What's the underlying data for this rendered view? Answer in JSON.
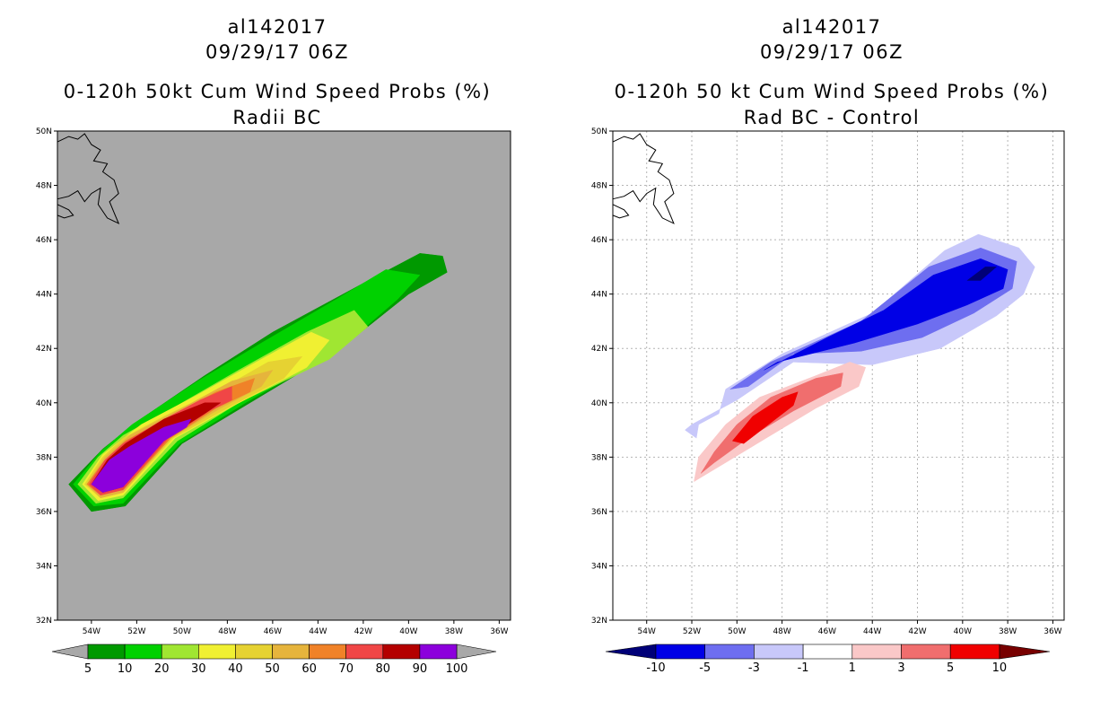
{
  "chart_data": [
    {
      "type": "heatmap",
      "storm_id": "al142017",
      "datetime": "09/29/17 06Z",
      "title": "0-120h 50kt Cum Wind Speed Probs (%)",
      "subtitle": "Radii BC",
      "x_ticks": [
        "54W",
        "52W",
        "50W",
        "48W",
        "46W",
        "44W",
        "42W",
        "40W",
        "38W",
        "36W"
      ],
      "y_ticks": [
        "32N",
        "34N",
        "36N",
        "38N",
        "40N",
        "42N",
        "44N",
        "46N",
        "48N",
        "50N"
      ],
      "xlim_lon_west": [
        55.5,
        35.5
      ],
      "ylim_lat": [
        32,
        50
      ],
      "grid": false,
      "background_color": "#a8a8a8",
      "colorbar": {
        "labels": [
          "5",
          "10",
          "20",
          "30",
          "40",
          "50",
          "60",
          "70",
          "80",
          "90",
          "100"
        ],
        "colors": [
          "#009900",
          "#00d100",
          "#a0e632",
          "#f0f032",
          "#e6d232",
          "#e6b43c",
          "#f08228",
          "#f04646",
          "#b40000",
          "#8c00dc"
        ],
        "under_color": "#a8a8a8",
        "over_color": "#a8a8a8"
      },
      "contour_levels": [
        {
          "label": "5",
          "color": "#009900",
          "polygon_lonW_lat": [
            [
              55.0,
              37.0
            ],
            [
              54.0,
              36.0
            ],
            [
              52.5,
              36.2
            ],
            [
              50.0,
              38.5
            ],
            [
              47.0,
              40.0
            ],
            [
              43.0,
              42.0
            ],
            [
              40.0,
              44.0
            ],
            [
              38.3,
              44.8
            ],
            [
              38.5,
              45.4
            ],
            [
              39.5,
              45.5
            ],
            [
              42.0,
              44.4
            ],
            [
              46.0,
              42.6
            ],
            [
              49.0,
              41.0
            ],
            [
              52.0,
              39.3
            ],
            [
              53.5,
              38.3
            ]
          ]
        },
        {
          "label": "10",
          "color": "#00d100",
          "polygon_lonW_lat": [
            [
              54.8,
              37.0
            ],
            [
              53.9,
              36.2
            ],
            [
              52.6,
              36.3
            ],
            [
              50.1,
              38.5
            ],
            [
              47.2,
              40.0
            ],
            [
              43.0,
              42.0
            ],
            [
              40.5,
              43.8
            ],
            [
              39.5,
              44.7
            ],
            [
              41.0,
              44.9
            ],
            [
              43.0,
              43.9
            ],
            [
              46.5,
              42.2
            ],
            [
              49.3,
              40.8
            ],
            [
              52.2,
              39.2
            ],
            [
              53.6,
              38.2
            ]
          ]
        },
        {
          "label": "20",
          "color": "#a0e632",
          "polygon_lonW_lat": [
            [
              54.6,
              37.0
            ],
            [
              53.8,
              36.3
            ],
            [
              52.6,
              36.5
            ],
            [
              50.2,
              38.6
            ],
            [
              47.5,
              40.0
            ],
            [
              43.5,
              41.6
            ],
            [
              41.8,
              42.8
            ],
            [
              42.4,
              43.4
            ],
            [
              44.5,
              42.6
            ],
            [
              47.5,
              41.2
            ],
            [
              50.2,
              39.9
            ],
            [
              52.6,
              38.8
            ],
            [
              53.7,
              38.0
            ]
          ]
        },
        {
          "label": "30",
          "color": "#f0f032",
          "polygon_lonW_lat": [
            [
              54.4,
              37.0
            ],
            [
              53.7,
              36.4
            ],
            [
              52.6,
              36.6
            ],
            [
              50.3,
              38.7
            ],
            [
              47.7,
              39.9
            ],
            [
              44.5,
              41.3
            ],
            [
              43.5,
              42.3
            ],
            [
              44.3,
              42.6
            ],
            [
              46.5,
              41.6
            ],
            [
              49.3,
              40.3
            ],
            [
              51.8,
              39.2
            ],
            [
              53.5,
              38.1
            ]
          ]
        },
        {
          "label": "40",
          "color": "#e6d232",
          "polygon_lonW_lat": [
            [
              54.3,
              37.0
            ],
            [
              53.6,
              36.5
            ],
            [
              52.6,
              36.7
            ],
            [
              50.4,
              38.7
            ],
            [
              48.0,
              39.8
            ],
            [
              45.5,
              40.9
            ],
            [
              44.7,
              41.7
            ],
            [
              46.2,
              41.5
            ],
            [
              48.3,
              40.5
            ],
            [
              50.8,
              39.5
            ],
            [
              52.6,
              38.7
            ],
            [
              53.5,
              38.0
            ]
          ]
        },
        {
          "label": "50",
          "color": "#e6b43c",
          "polygon_lonW_lat": [
            [
              54.2,
              37.0
            ],
            [
              53.6,
              36.5
            ],
            [
              52.6,
              36.7
            ],
            [
              50.5,
              38.7
            ],
            [
              48.3,
              39.8
            ],
            [
              46.5,
              40.6
            ],
            [
              46.0,
              41.2
            ],
            [
              47.8,
              40.8
            ],
            [
              50.0,
              39.8
            ],
            [
              52.3,
              38.8
            ],
            [
              53.4,
              38.0
            ]
          ]
        },
        {
          "label": "60",
          "color": "#f08228",
          "polygon_lonW_lat": [
            [
              54.2,
              37.0
            ],
            [
              53.6,
              36.6
            ],
            [
              52.6,
              36.8
            ],
            [
              50.5,
              38.7
            ],
            [
              48.5,
              39.8
            ],
            [
              47.0,
              40.4
            ],
            [
              46.8,
              40.9
            ],
            [
              48.5,
              40.4
            ],
            [
              50.5,
              39.5
            ],
            [
              52.5,
              38.6
            ],
            [
              53.4,
              37.9
            ]
          ]
        },
        {
          "label": "70",
          "color": "#f04646",
          "polygon_lonW_lat": [
            [
              54.1,
              37.0
            ],
            [
              53.6,
              36.6
            ],
            [
              52.6,
              36.8
            ],
            [
              50.6,
              38.7
            ],
            [
              48.8,
              39.7
            ],
            [
              47.8,
              40.1
            ],
            [
              47.8,
              40.6
            ],
            [
              49.2,
              40.1
            ],
            [
              51.0,
              39.3
            ],
            [
              52.6,
              38.5
            ],
            [
              53.4,
              37.9
            ]
          ]
        },
        {
          "label": "80",
          "color": "#b40000",
          "polygon_lonW_lat": [
            [
              54.0,
              37.0
            ],
            [
              53.5,
              36.7
            ],
            [
              52.6,
              36.9
            ],
            [
              50.7,
              38.7
            ],
            [
              49.0,
              39.6
            ],
            [
              48.3,
              40.0
            ],
            [
              49.0,
              40.0
            ],
            [
              50.8,
              39.4
            ],
            [
              52.5,
              38.5
            ],
            [
              53.3,
              37.9
            ]
          ]
        },
        {
          "label": "90",
          "color": "#8c00dc",
          "polygon_lonW_lat": [
            [
              54.0,
              37.0
            ],
            [
              53.5,
              36.7
            ],
            [
              52.6,
              36.9
            ],
            [
              50.8,
              38.6
            ],
            [
              49.8,
              39.1
            ],
            [
              49.6,
              39.4
            ],
            [
              50.8,
              39.1
            ],
            [
              52.3,
              38.4
            ],
            [
              53.2,
              37.9
            ]
          ]
        }
      ]
    },
    {
      "type": "heatmap",
      "storm_id": "al142017",
      "datetime": "09/29/17 06Z",
      "title": "0-120h 50 kt Cum Wind Speed Probs (%)",
      "subtitle": "Rad BC - Control",
      "x_ticks": [
        "54W",
        "52W",
        "50W",
        "48W",
        "46W",
        "44W",
        "42W",
        "40W",
        "38W",
        "36W"
      ],
      "y_ticks": [
        "32N",
        "34N",
        "36N",
        "38N",
        "40N",
        "42N",
        "44N",
        "46N",
        "48N",
        "50N"
      ],
      "xlim_lon_west": [
        55.5,
        35.5
      ],
      "ylim_lat": [
        32,
        50
      ],
      "grid": true,
      "background_color": "#ffffff",
      "colorbar": {
        "labels": [
          "-10",
          "-5",
          "-3",
          "-1",
          "1",
          "3",
          "5",
          "10"
        ],
        "colors": [
          "#0000e6",
          "#6e6ef0",
          "#c8c8fa",
          "#ffffff",
          "#fac8c8",
          "#f06e6e",
          "#f00000"
        ],
        "under_color": "#000078",
        "over_color": "#780000"
      },
      "contour_levels": [
        {
          "label": "-1",
          "color": "#c8c8fa",
          "polygon_lonW_lat": [
            [
              52.3,
              39.0
            ],
            [
              51.8,
              38.7
            ],
            [
              51.7,
              39.2
            ],
            [
              50.8,
              39.6
            ],
            [
              50.5,
              40.5
            ],
            [
              48.0,
              41.8
            ],
            [
              44.0,
              43.3
            ],
            [
              40.8,
              45.6
            ],
            [
              39.3,
              46.2
            ],
            [
              37.5,
              45.7
            ],
            [
              36.8,
              45.0
            ],
            [
              37.3,
              44.0
            ],
            [
              38.5,
              43.2
            ],
            [
              41.0,
              42.0
            ],
            [
              44.0,
              41.4
            ],
            [
              47.5,
              41.5
            ],
            [
              50.0,
              40.1
            ],
            [
              52.0,
              39.2
            ]
          ]
        },
        {
          "label": "-3",
          "color": "#6e6ef0",
          "polygon_lonW_lat": [
            [
              50.3,
              40.5
            ],
            [
              48.5,
              41.5
            ],
            [
              44.5,
              43.0
            ],
            [
              41.5,
              45.0
            ],
            [
              39.2,
              45.7
            ],
            [
              37.6,
              45.2
            ],
            [
              37.8,
              44.2
            ],
            [
              39.5,
              43.3
            ],
            [
              41.8,
              42.4
            ],
            [
              44.5,
              41.9
            ],
            [
              47.5,
              41.8
            ],
            [
              49.5,
              40.6
            ]
          ]
        },
        {
          "label": "-5",
          "color": "#0000e6",
          "polygon_lonW_lat": [
            [
              48.8,
              41.2
            ],
            [
              46.0,
              42.4
            ],
            [
              43.5,
              43.4
            ],
            [
              41.3,
              44.7
            ],
            [
              39.2,
              45.3
            ],
            [
              38.0,
              44.9
            ],
            [
              38.2,
              44.2
            ],
            [
              39.8,
              43.6
            ],
            [
              42.0,
              42.9
            ],
            [
              44.8,
              42.2
            ],
            [
              48.2,
              41.5
            ]
          ]
        },
        {
          "label": "-10",
          "color": "#000078",
          "polygon_lonW_lat": [
            [
              39.8,
              44.5
            ],
            [
              39.0,
              45.0
            ],
            [
              38.5,
              45.0
            ],
            [
              39.2,
              44.5
            ]
          ]
        },
        {
          "label": "1",
          "color": "#fac8c8",
          "polygon_lonW_lat": [
            [
              51.9,
              37.1
            ],
            [
              51.7,
              38.0
            ],
            [
              50.5,
              39.2
            ],
            [
              49.0,
              40.2
            ],
            [
              46.5,
              41.0
            ],
            [
              45.0,
              41.5
            ],
            [
              44.3,
              41.3
            ],
            [
              44.6,
              40.6
            ],
            [
              46.5,
              39.8
            ],
            [
              48.5,
              38.8
            ],
            [
              50.5,
              37.8
            ],
            [
              51.5,
              37.3
            ]
          ]
        },
        {
          "label": "3",
          "color": "#f06e6e",
          "polygon_lonW_lat": [
            [
              51.6,
              37.4
            ],
            [
              51.0,
              38.2
            ],
            [
              50.0,
              39.2
            ],
            [
              48.5,
              40.2
            ],
            [
              46.5,
              40.9
            ],
            [
              45.3,
              41.1
            ],
            [
              45.4,
              40.6
            ],
            [
              47.5,
              39.7
            ],
            [
              49.5,
              38.7
            ],
            [
              51.0,
              37.8
            ]
          ]
        },
        {
          "label": "5",
          "color": "#f00000",
          "polygon_lonW_lat": [
            [
              50.2,
              38.6
            ],
            [
              49.3,
              39.5
            ],
            [
              48.0,
              40.2
            ],
            [
              47.3,
              40.4
            ],
            [
              47.5,
              39.9
            ],
            [
              48.6,
              39.2
            ],
            [
              49.7,
              38.5
            ]
          ]
        }
      ]
    }
  ]
}
